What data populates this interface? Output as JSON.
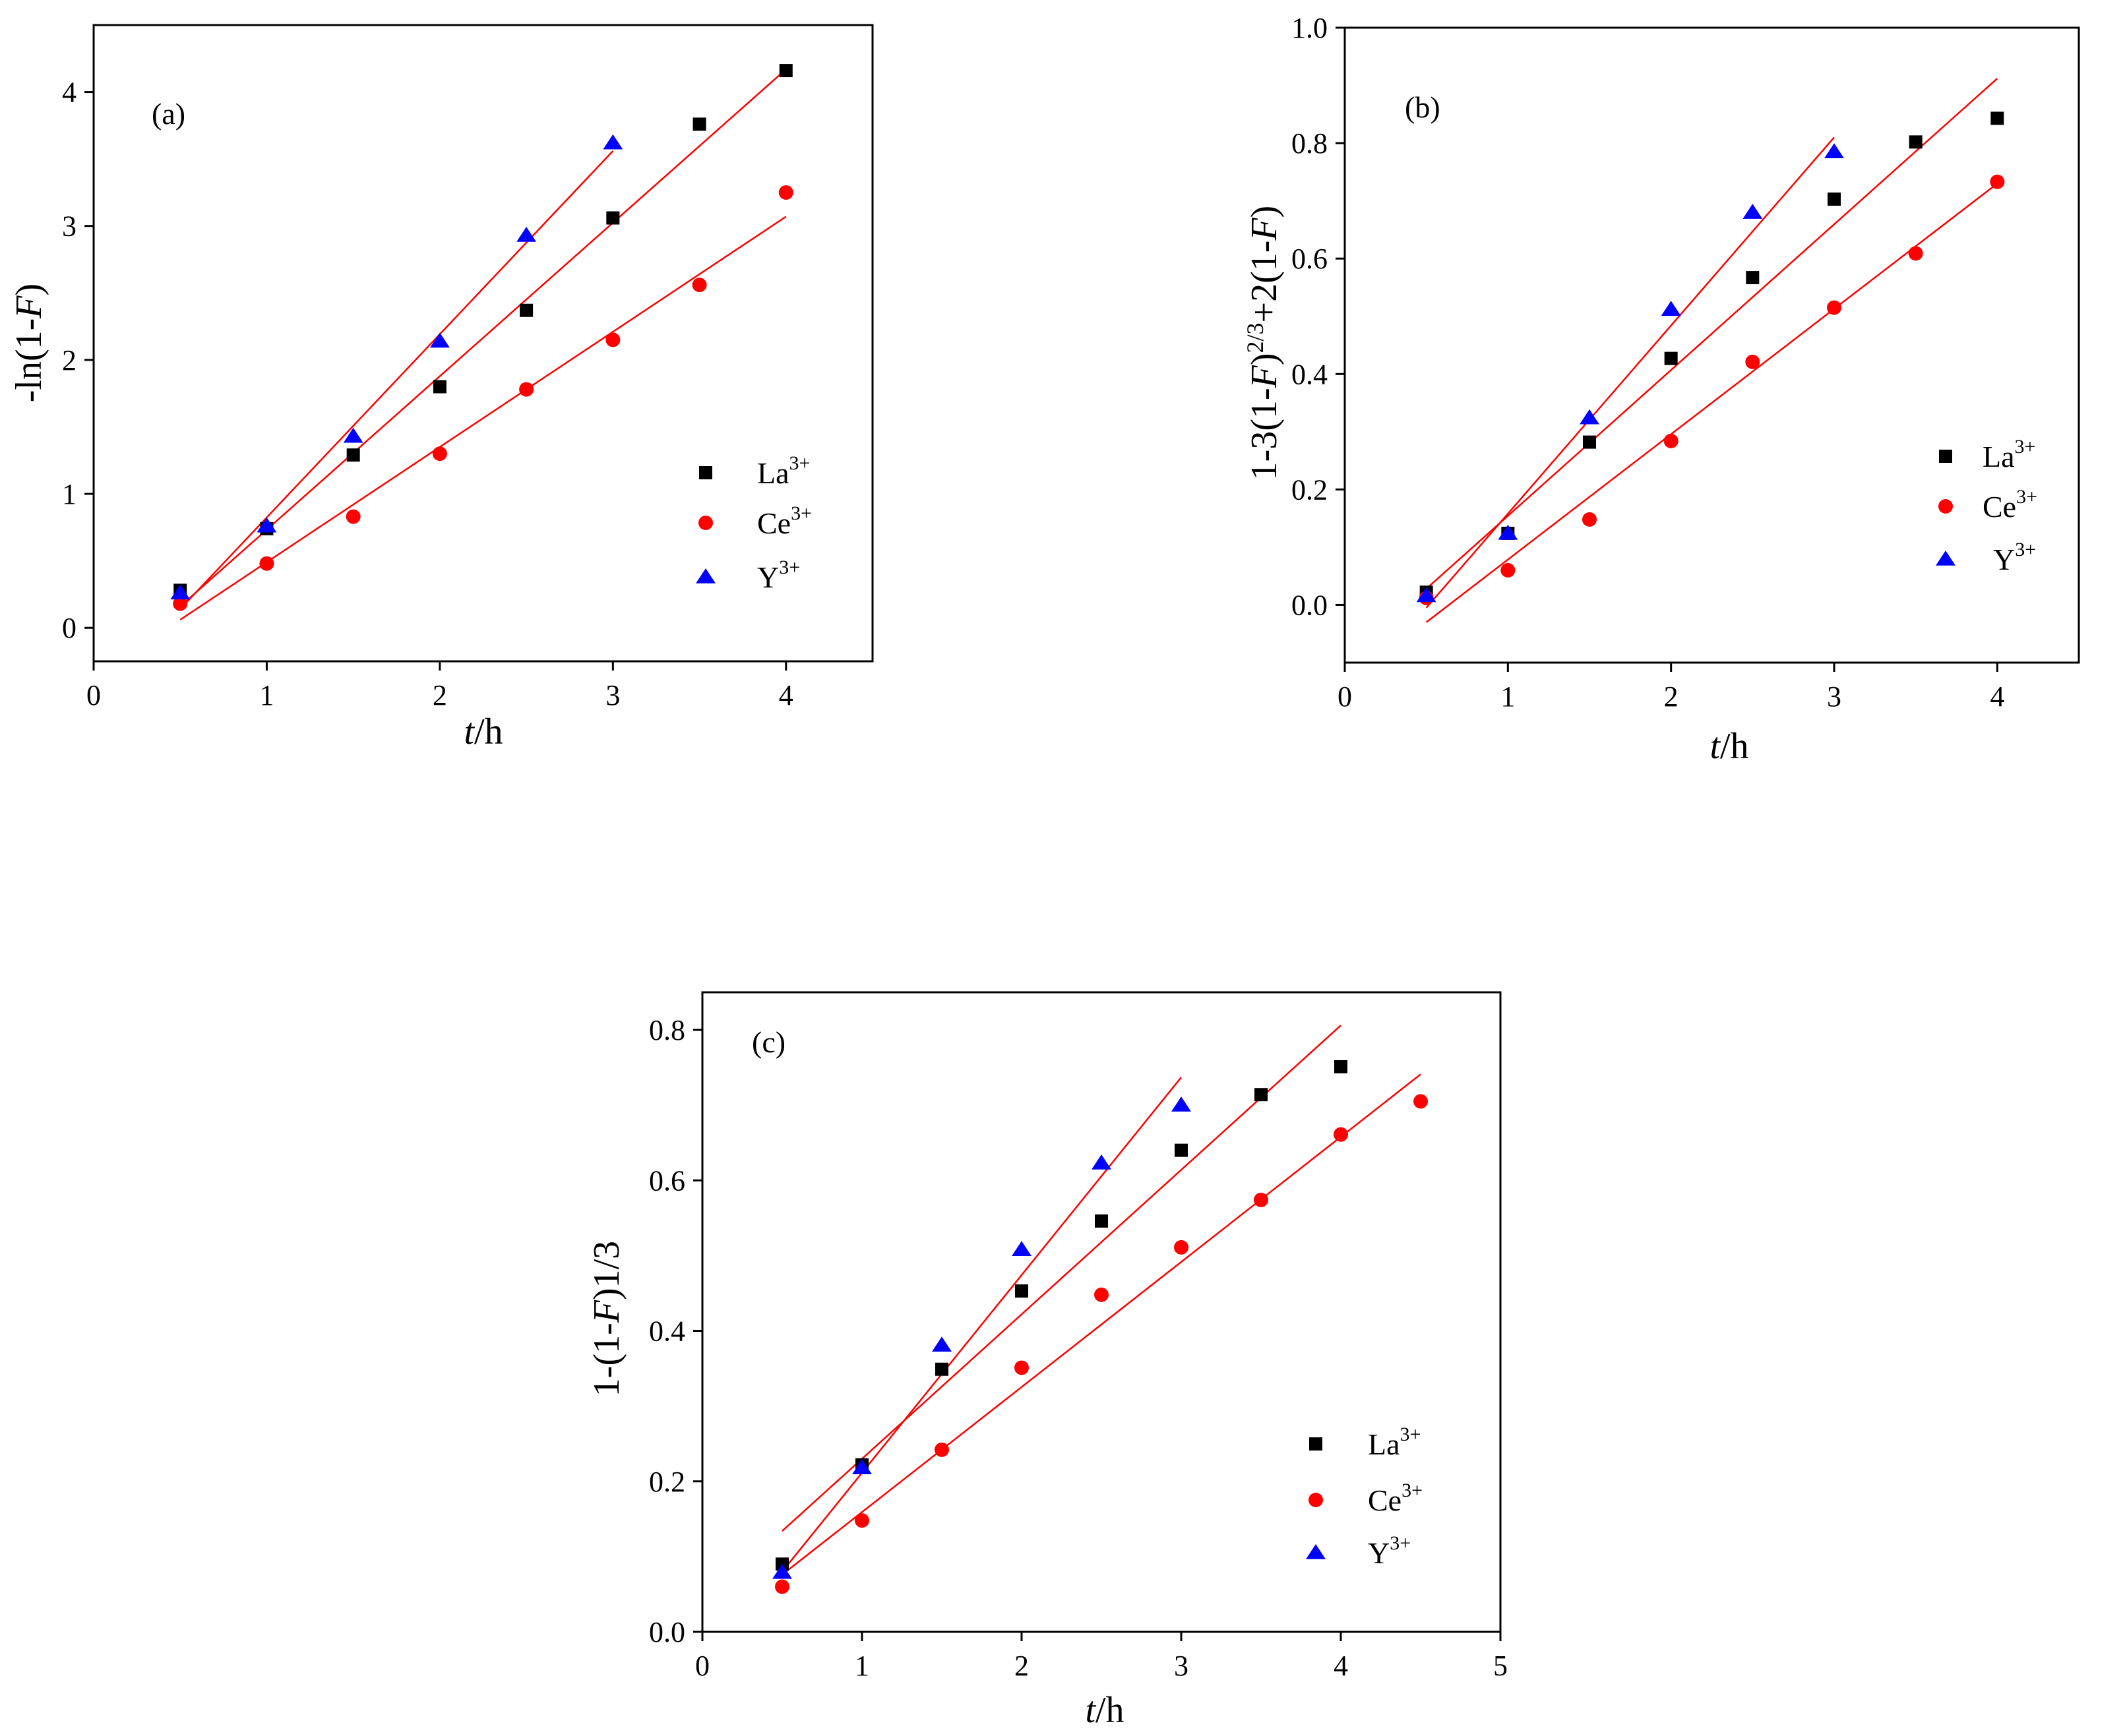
{
  "figure": {
    "colors": {
      "La": "#000000",
      "Ce": "#ff0000",
      "Y": "#0000ff",
      "fit": "#ff0000",
      "axis": "#000000"
    },
    "legend": [
      {
        "key": "La",
        "base": "La",
        "sup": "3+",
        "marker": "square"
      },
      {
        "key": "Ce",
        "base": "Ce",
        "sup": "3+",
        "marker": "circle"
      },
      {
        "key": "Y",
        "base": "Y",
        "sup": "3+",
        "marker": "triangle"
      }
    ]
  },
  "chart_data": [
    {
      "type": "scatter",
      "panel_label": "(a)",
      "title": "",
      "xlabel": {
        "italic": "t",
        "rest": "/h"
      },
      "ylabel": {
        "parts": [
          {
            "t": "-ln(1-"
          },
          {
            "t": "F",
            "i": true
          },
          {
            "t": ")"
          }
        ]
      },
      "xlim": [
        0,
        4.5
      ],
      "ylim": [
        -0.25,
        4.5
      ],
      "xticks": [
        0,
        1,
        2,
        3,
        4
      ],
      "yticks": [
        0,
        1,
        2,
        3,
        4
      ],
      "xtick_labels": [
        "0",
        "1",
        "2",
        "3",
        "4"
      ],
      "ytick_labels": [
        "0",
        "1",
        "2",
        "3",
        "4"
      ],
      "series": [
        {
          "name": "La3+",
          "key": "La",
          "marker": "square",
          "x": [
            0.5,
            1.0,
            1.5,
            2.0,
            2.5,
            3.0,
            3.5,
            4.0
          ],
          "y": [
            0.28,
            0.74,
            1.29,
            1.8,
            2.37,
            3.06,
            3.76,
            4.16
          ],
          "fit": {
            "x": [
              0.5,
              4.0
            ],
            "y": [
              0.16,
              4.17
            ]
          }
        },
        {
          "name": "Ce3+",
          "key": "Ce",
          "marker": "circle",
          "x": [
            0.5,
            1.0,
            1.5,
            2.0,
            2.5,
            3.0,
            3.5,
            4.0
          ],
          "y": [
            0.18,
            0.48,
            0.83,
            1.3,
            1.78,
            2.15,
            2.56,
            3.25
          ],
          "fit": {
            "x": [
              0.5,
              4.0
            ],
            "y": [
              0.06,
              3.07
            ]
          }
        },
        {
          "name": "Y3+",
          "key": "Y",
          "marker": "triangle",
          "x": [
            0.5,
            1.0,
            1.5,
            2.0,
            2.5,
            3.0
          ],
          "y": [
            0.26,
            0.76,
            1.43,
            2.14,
            2.93,
            3.62
          ],
          "fit": {
            "x": [
              0.5,
              3.0
            ],
            "y": [
              0.14,
              3.56
            ]
          }
        }
      ],
      "legend_position": "right"
    },
    {
      "type": "scatter",
      "panel_label": "(b)",
      "title": "",
      "xlabel": {
        "italic": "t",
        "rest": "/h"
      },
      "ylabel": {
        "parts": [
          {
            "t": "1-3(1-"
          },
          {
            "t": "F",
            "i": true
          },
          {
            "t": ")"
          },
          {
            "t": "2/3",
            "sup": true
          },
          {
            "t": "+2(1-"
          },
          {
            "t": "F",
            "i": true
          },
          {
            "t": ")"
          }
        ]
      },
      "xlim": [
        0,
        4.5
      ],
      "ylim": [
        -0.1,
        1.0
      ],
      "xticks": [
        0,
        1,
        2,
        3,
        4
      ],
      "yticks": [
        0.0,
        0.2,
        0.4,
        0.6,
        0.8,
        1.0
      ],
      "xtick_labels": [
        "0",
        "1",
        "2",
        "3",
        "4"
      ],
      "ytick_labels": [
        "0.0",
        "0.2",
        "0.4",
        "0.6",
        "0.8",
        "1.0"
      ],
      "series": [
        {
          "name": "La3+",
          "key": "La",
          "marker": "square",
          "x": [
            0.5,
            1.0,
            1.5,
            2.0,
            2.5,
            3.0,
            3.5,
            4.0
          ],
          "y": [
            0.022,
            0.124,
            0.282,
            0.427,
            0.567,
            0.703,
            0.802,
            0.843
          ],
          "fit": {
            "x": [
              0.5,
              4.0
            ],
            "y": [
              0.028,
              0.912
            ]
          }
        },
        {
          "name": "Ce3+",
          "key": "Ce",
          "marker": "circle",
          "x": [
            0.5,
            1.0,
            1.5,
            2.0,
            2.5,
            3.0,
            3.5,
            4.0
          ],
          "y": [
            0.012,
            0.06,
            0.148,
            0.284,
            0.421,
            0.515,
            0.609,
            0.733
          ],
          "fit": {
            "x": [
              0.5,
              4.0
            ],
            "y": [
              -0.03,
              0.73
            ]
          }
        },
        {
          "name": "Y3+",
          "key": "Y",
          "marker": "triangle",
          "x": [
            0.5,
            1.0,
            1.5,
            2.0,
            2.5,
            3.0
          ],
          "y": [
            0.016,
            0.124,
            0.324,
            0.512,
            0.68,
            0.785
          ],
          "fit": {
            "x": [
              0.5,
              3.0
            ],
            "y": [
              -0.005,
              0.81
            ]
          }
        }
      ],
      "legend_position": "right"
    },
    {
      "type": "scatter",
      "panel_label": "(c)",
      "title": "",
      "xlabel": {
        "italic": "t",
        "rest": "/h"
      },
      "ylabel": {
        "parts": [
          {
            "t": "1-(1-"
          },
          {
            "t": "F",
            "i": true
          },
          {
            "t": ")1/3"
          }
        ]
      },
      "xlim": [
        0,
        5
      ],
      "ylim": [
        0,
        0.85
      ],
      "xticks": [
        0,
        1,
        2,
        3,
        4,
        5
      ],
      "yticks": [
        0.0,
        0.2,
        0.4,
        0.6,
        0.8
      ],
      "xtick_labels": [
        "0",
        "1",
        "2",
        "3",
        "4",
        "5"
      ],
      "ytick_labels": [
        "0.0",
        "0.2",
        "0.4",
        "0.6",
        "0.8"
      ],
      "series": [
        {
          "name": "La3+",
          "key": "La",
          "marker": "square",
          "x": [
            0.5,
            1.0,
            1.5,
            2.0,
            2.5,
            3.0,
            3.5,
            4.0
          ],
          "y": [
            0.09,
            0.222,
            0.349,
            0.453,
            0.546,
            0.64,
            0.714,
            0.751
          ],
          "fit": {
            "x": [
              0.5,
              4.0
            ],
            "y": [
              0.134,
              0.806
            ]
          }
        },
        {
          "name": "Ce3+",
          "key": "Ce",
          "marker": "circle",
          "x": [
            0.5,
            1.0,
            1.5,
            2.0,
            2.5,
            3.0,
            3.5,
            4.0,
            4.5
          ],
          "y": [
            0.06,
            0.148,
            0.242,
            0.351,
            0.448,
            0.511,
            0.574,
            0.661,
            0.705
          ],
          "fit": {
            "x": [
              0.5,
              4.5
            ],
            "y": [
              0.076,
              0.741
            ]
          }
        },
        {
          "name": "Y3+",
          "key": "Y",
          "marker": "triangle",
          "x": [
            0.5,
            1.0,
            1.5,
            2.0,
            2.5,
            3.0
          ],
          "y": [
            0.079,
            0.218,
            0.381,
            0.508,
            0.623,
            0.7
          ],
          "fit": {
            "x": [
              0.5,
              3.0
            ],
            "y": [
              0.08,
              0.737
            ]
          }
        }
      ],
      "legend_position": "right"
    }
  ]
}
